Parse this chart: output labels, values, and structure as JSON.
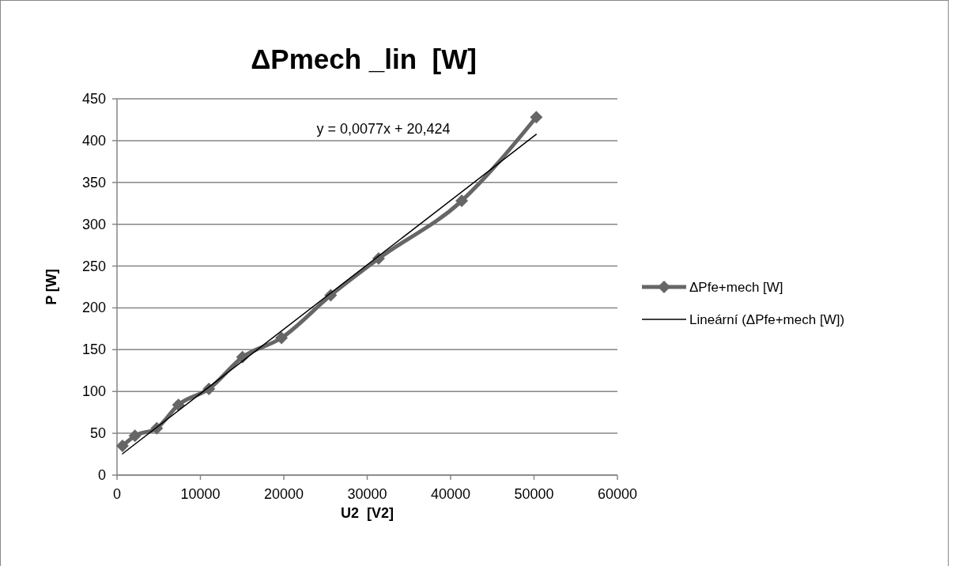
{
  "chart_data": {
    "type": "line",
    "title": "ΔPmech _lin  [W]",
    "xlabel": "U2  [V2]",
    "ylabel": "P [W]",
    "xlim": [
      0,
      60000
    ],
    "xticks": [
      0,
      10000,
      20000,
      30000,
      40000,
      50000,
      60000
    ],
    "ylim": [
      0,
      450
    ],
    "yticks": [
      0,
      50,
      100,
      150,
      200,
      250,
      300,
      350,
      400,
      450
    ],
    "grid": "y",
    "legend": "right",
    "annotations": [
      "y = 0,0077x + 20,424"
    ],
    "series": [
      {
        "name": "ΔPfe+mech [W]",
        "color": "#666666",
        "marker": "diamond",
        "x": [
          660,
          2150,
          4770,
          7360,
          11020,
          15040,
          19720,
          25620,
          31370,
          41330,
          50270
        ],
        "values": [
          35,
          47,
          56,
          84,
          103,
          141,
          164,
          215,
          259,
          328,
          428
        ]
      },
      {
        "name": "Lineární (ΔPfe+mech [W])",
        "color": "#000000",
        "marker": "none",
        "x": [
          660,
          50270
        ],
        "values": [
          25.5,
          407.5
        ]
      }
    ]
  }
}
